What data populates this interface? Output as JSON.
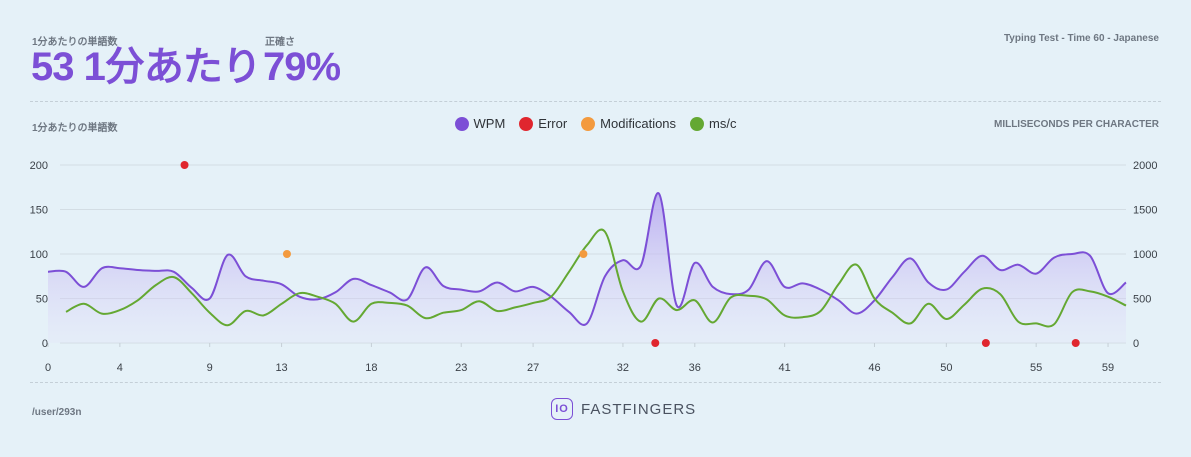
{
  "header": {
    "wpm_label": "1分あたりの単語数",
    "wpm_value": "53 1分あたり",
    "accuracy_label": "正確さ",
    "accuracy_value": "79%",
    "test_info": "Typing Test - Time 60 - Japanese"
  },
  "footer": {
    "user": "/user/293n",
    "brand": "FASTFINGERS",
    "logo_text": "IO"
  },
  "colors": {
    "wpm": "#7c4fd6",
    "error": "#e0262e",
    "modifications": "#f39a3e",
    "mspc": "#64a832"
  },
  "chart_data": {
    "type": "line",
    "ylabel": "1分あたりの単語数",
    "y2label": "MILLISECONDS PER CHARACTER",
    "legend": [
      "WPM",
      "Error",
      "Modifications",
      "ms/c"
    ],
    "legend_position": "top-center",
    "x_ticks": [
      "0",
      "4",
      "9",
      "13",
      "18",
      "23",
      "27",
      "32",
      "36",
      "41",
      "46",
      "50",
      "55",
      "59"
    ],
    "y_ticks": [
      "0",
      "50",
      "100",
      "150",
      "200"
    ],
    "y2_ticks": [
      "0",
      "500",
      "1000",
      "1500",
      "2000"
    ],
    "xlim": [
      0,
      60
    ],
    "ylim": [
      0,
      200
    ],
    "y2lim": [
      0,
      2000
    ],
    "grid": true,
    "series": [
      {
        "name": "WPM",
        "points": [
          [
            0,
            80
          ],
          [
            1,
            80
          ],
          [
            2,
            63
          ],
          [
            3,
            84
          ],
          [
            4,
            84
          ],
          [
            5,
            82
          ],
          [
            6,
            81
          ],
          [
            7,
            80
          ],
          [
            8,
            62
          ],
          [
            9,
            50
          ],
          [
            10,
            99
          ],
          [
            11,
            75
          ],
          [
            12,
            70
          ],
          [
            13,
            66
          ],
          [
            14,
            52
          ],
          [
            15,
            49
          ],
          [
            16,
            57
          ],
          [
            17,
            72
          ],
          [
            18,
            65
          ],
          [
            19,
            57
          ],
          [
            20,
            49
          ],
          [
            21,
            85
          ],
          [
            22,
            64
          ],
          [
            23,
            60
          ],
          [
            24,
            58
          ],
          [
            25,
            68
          ],
          [
            26,
            58
          ],
          [
            27,
            63
          ],
          [
            28,
            52
          ],
          [
            29,
            35
          ],
          [
            30,
            22
          ],
          [
            31,
            75
          ],
          [
            32,
            93
          ],
          [
            33,
            87
          ],
          [
            34,
            168
          ],
          [
            35,
            42
          ],
          [
            36,
            90
          ],
          [
            37,
            63
          ],
          [
            38,
            55
          ],
          [
            39,
            60
          ],
          [
            40,
            92
          ],
          [
            41,
            63
          ],
          [
            42,
            67
          ],
          [
            43,
            60
          ],
          [
            44,
            48
          ],
          [
            45,
            33
          ],
          [
            46,
            48
          ],
          [
            47,
            74
          ],
          [
            48,
            95
          ],
          [
            49,
            68
          ],
          [
            50,
            60
          ],
          [
            51,
            80
          ],
          [
            52,
            98
          ],
          [
            53,
            82
          ],
          [
            54,
            88
          ],
          [
            55,
            78
          ],
          [
            56,
            96
          ],
          [
            57,
            100
          ],
          [
            58,
            98
          ],
          [
            59,
            56
          ],
          [
            60,
            68
          ]
        ]
      },
      {
        "name": "ms/c",
        "points": [
          [
            1,
            350
          ],
          [
            2,
            440
          ],
          [
            3,
            330
          ],
          [
            4,
            370
          ],
          [
            5,
            480
          ],
          [
            6,
            650
          ],
          [
            7,
            740
          ],
          [
            8,
            560
          ],
          [
            9,
            340
          ],
          [
            10,
            200
          ],
          [
            11,
            360
          ],
          [
            12,
            310
          ],
          [
            13,
            440
          ],
          [
            14,
            560
          ],
          [
            15,
            520
          ],
          [
            16,
            440
          ],
          [
            17,
            240
          ],
          [
            18,
            440
          ],
          [
            19,
            450
          ],
          [
            20,
            420
          ],
          [
            21,
            280
          ],
          [
            22,
            340
          ],
          [
            23,
            370
          ],
          [
            24,
            470
          ],
          [
            25,
            360
          ],
          [
            26,
            400
          ],
          [
            27,
            450
          ],
          [
            28,
            520
          ],
          [
            29,
            800
          ],
          [
            30,
            1100
          ],
          [
            31,
            1250
          ],
          [
            32,
            580
          ],
          [
            33,
            240
          ],
          [
            34,
            500
          ],
          [
            35,
            370
          ],
          [
            36,
            480
          ],
          [
            37,
            230
          ],
          [
            38,
            510
          ],
          [
            39,
            530
          ],
          [
            40,
            490
          ],
          [
            41,
            310
          ],
          [
            42,
            290
          ],
          [
            43,
            360
          ],
          [
            44,
            660
          ],
          [
            45,
            880
          ],
          [
            46,
            500
          ],
          [
            47,
            340
          ],
          [
            48,
            220
          ],
          [
            49,
            440
          ],
          [
            50,
            270
          ],
          [
            51,
            430
          ],
          [
            52,
            610
          ],
          [
            53,
            550
          ],
          [
            54,
            240
          ],
          [
            55,
            220
          ],
          [
            56,
            210
          ],
          [
            57,
            570
          ],
          [
            58,
            580
          ],
          [
            59,
            520
          ],
          [
            60,
            420
          ]
        ]
      },
      {
        "name": "Error",
        "points": [
          [
            7.6,
            200
          ],
          [
            33.8,
            0
          ],
          [
            52.2,
            0
          ],
          [
            57.2,
            0
          ]
        ]
      },
      {
        "name": "Modifications",
        "points": [
          [
            13.3,
            100
          ],
          [
            29.8,
            100
          ]
        ]
      }
    ]
  }
}
